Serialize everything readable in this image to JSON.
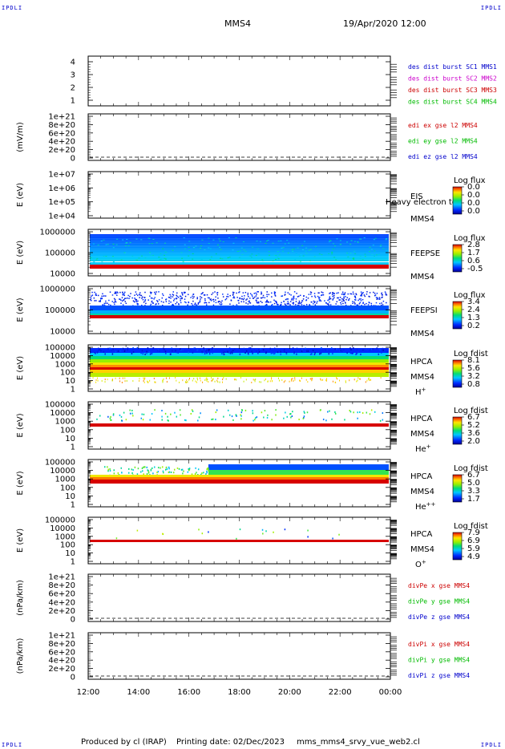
{
  "header": {
    "corner_tl": "IPDLI",
    "corner_tr": "IPDLI",
    "corner_bl": "IPDLI",
    "corner_br": "IPDLI",
    "spacecraft": "MMS4",
    "datetime": "19/Apr/2020 12:00"
  },
  "footer": {
    "produced_by": "Produced by cl (IRAP)",
    "printing_date": "Printing date: 02/Dec/2023",
    "script_name": "mms_mms4_srvy_vue_web2.cl"
  },
  "chart_data": {
    "type": "heatmap",
    "x": {
      "range": [
        "12:00",
        "00:00"
      ],
      "tick_labels": [
        "12:00",
        "14:00",
        "16:00",
        "18:00",
        "20:00",
        "22:00",
        "00:00"
      ]
    },
    "panels": [
      {
        "id": "burst",
        "kind": "line",
        "ylabel": "",
        "yscale": "linear",
        "yticks": [
          "1",
          "2",
          "3",
          "4"
        ],
        "legend": [
          {
            "text": "des dist burst SC1 MMS1",
            "color": "#0000cc"
          },
          {
            "text": "des dist burst SC2 MMS2",
            "color": "#cc00cc"
          },
          {
            "text": "des dist burst SC3 MMS3",
            "color": "#cc0000"
          },
          {
            "text": "des dist burst SC4 MMS4",
            "color": "#00bb00"
          }
        ]
      },
      {
        "id": "edi",
        "kind": "line",
        "ylabel": "(mV/m)",
        "yscale": "linear",
        "yticks": [
          "0",
          "2e+20",
          "4e+20",
          "6e+20",
          "8e+20",
          "1e+21"
        ],
        "zero_line": true,
        "legend": [
          {
            "text": "edi ex gse l2 MMS4",
            "color": "#cc0000"
          },
          {
            "text": "edi ey gse l2 MMS4",
            "color": "#00bb00"
          },
          {
            "text": "edi ez gse l2 MMS4",
            "color": "#0000cc"
          }
        ]
      },
      {
        "id": "eis",
        "kind": "spectrogram",
        "ylabel": "E (eV)",
        "yscale": "log",
        "yticks": [
          "1e+04",
          "1e+05",
          "1e+06",
          "1e+07"
        ],
        "instrument": [
          "EIS",
          "MMS4"
        ],
        "overlay_text": "Heavy electron to",
        "colorbar": {
          "title": "Log flux",
          "labels": [
            "0.0",
            "0.0",
            "0.0",
            "0.0"
          ]
        }
      },
      {
        "id": "feepse",
        "kind": "spectrogram",
        "ylabel": "E (eV)",
        "yscale": "log",
        "yticks": [
          "10000",
          "100000",
          "1000000"
        ],
        "instrument": [
          "FEEPSE",
          "MMS4"
        ],
        "colorbar": {
          "title": "Log flux",
          "labels": [
            "2.8",
            "1.7",
            "0.6",
            "-0.5"
          ]
        }
      },
      {
        "id": "feepsi",
        "kind": "spectrogram",
        "ylabel": "E (eV)",
        "yscale": "log",
        "yticks": [
          "10000",
          "100000",
          "1000000"
        ],
        "instrument": [
          "FEEPSI",
          "MMS4"
        ],
        "colorbar": {
          "title": "Log flux",
          "labels": [
            "3.4",
            "2.4",
            "1.3",
            "0.2"
          ]
        }
      },
      {
        "id": "hpca_h",
        "kind": "spectrogram",
        "ylabel": "E (eV)",
        "yscale": "log",
        "yticks": [
          "1",
          "10",
          "100",
          "1000",
          "10000",
          "100000"
        ],
        "instrument": [
          "HPCA",
          "MMS4"
        ],
        "species": {
          "base": "H",
          "sup": "+"
        },
        "colorbar": {
          "title": "Log fdist",
          "labels": [
            "8.1",
            "5.6",
            "3.2",
            "0.8"
          ]
        }
      },
      {
        "id": "hpca_he",
        "kind": "spectrogram",
        "ylabel": "E (eV)",
        "yscale": "log",
        "yticks": [
          "1",
          "10",
          "100",
          "1000",
          "10000",
          "100000"
        ],
        "instrument": [
          "HPCA",
          "MMS4"
        ],
        "species": {
          "base": "He",
          "sup": "+"
        },
        "colorbar": {
          "title": "Log fdist",
          "labels": [
            "6.7",
            "5.2",
            "3.6",
            "2.0"
          ]
        }
      },
      {
        "id": "hpca_hepp",
        "kind": "spectrogram",
        "ylabel": "E (eV)",
        "yscale": "log",
        "yticks": [
          "1",
          "10",
          "100",
          "1000",
          "10000",
          "100000"
        ],
        "instrument": [
          "HPCA",
          "MMS4"
        ],
        "species": {
          "base": "He",
          "sup": "++"
        },
        "colorbar": {
          "title": "Log fdist",
          "labels": [
            "6.7",
            "5.0",
            "3.3",
            "1.7"
          ]
        }
      },
      {
        "id": "hpca_o",
        "kind": "spectrogram",
        "ylabel": "E (eV)",
        "yscale": "log",
        "yticks": [
          "1",
          "10",
          "100",
          "1000",
          "10000",
          "100000"
        ],
        "instrument": [
          "HPCA",
          "MMS4"
        ],
        "species": {
          "base": "O",
          "sup": "+"
        },
        "colorbar": {
          "title": "Log fdist",
          "labels": [
            "7.9",
            "6.9",
            "5.9",
            "4.9"
          ]
        }
      },
      {
        "id": "divpe",
        "kind": "line",
        "ylabel": "(nPa/km)",
        "yscale": "linear",
        "yticks": [
          "0",
          "2e+20",
          "4e+20",
          "6e+20",
          "8e+20",
          "1e+21"
        ],
        "zero_line": true,
        "legend": [
          {
            "text": "divPe x gse MMS4",
            "color": "#cc0000"
          },
          {
            "text": "divPe y gse MMS4",
            "color": "#00bb00"
          },
          {
            "text": "divPe z gse MMS4",
            "color": "#0000cc"
          }
        ]
      },
      {
        "id": "divpi",
        "kind": "line",
        "ylabel": "(nPa/km)",
        "yscale": "linear",
        "yticks": [
          "0",
          "2e+20",
          "4e+20",
          "6e+20",
          "8e+20",
          "1e+21"
        ],
        "zero_line": true,
        "legend": [
          {
            "text": "divPi x gse MMS4",
            "color": "#cc0000"
          },
          {
            "text": "divPi y gse MMS4",
            "color": "#00bb00"
          },
          {
            "text": "divPi z gse MMS4",
            "color": "#0000cc"
          }
        ]
      }
    ]
  }
}
